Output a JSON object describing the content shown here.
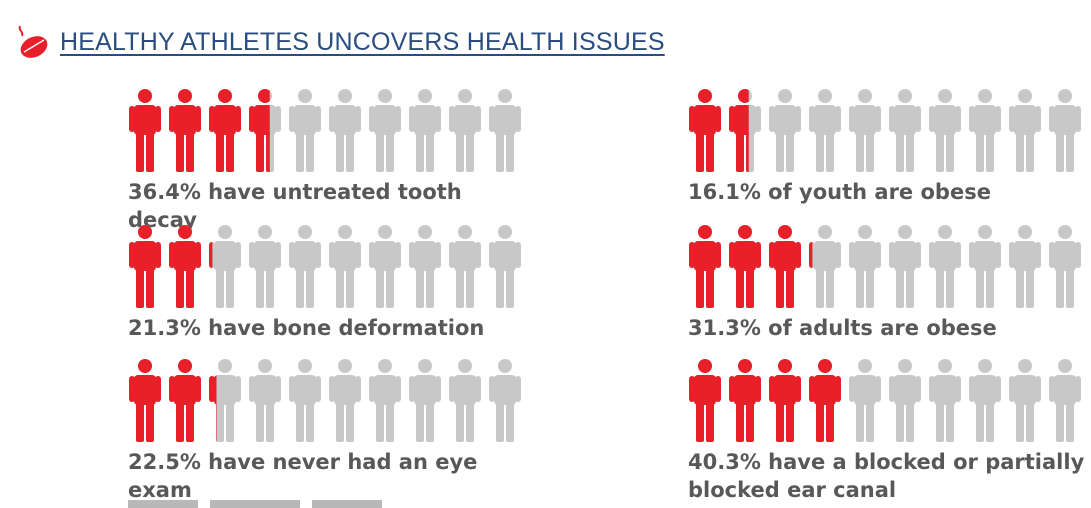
{
  "header": {
    "title": "HEALTHY ATHLETES UNCOVERS HEALTH ISSUES",
    "icon": "red-leaf-icon"
  },
  "colors": {
    "highlight": "#e8202a",
    "base": "#c8c8c8",
    "title": "#2a4d80",
    "text": "#585858"
  },
  "chart_data": {
    "type": "pictogram",
    "icons_per_row": 10,
    "items": [
      {
        "percent": 36.4,
        "caption": "36.4% have untreated tooth decay"
      },
      {
        "percent": 21.3,
        "caption": "21.3% have bone deformation"
      },
      {
        "percent": 22.5,
        "caption": "22.5% have never had an eye exam"
      },
      {
        "percent": 16.1,
        "caption": "16.1% of youth are obese"
      },
      {
        "percent": 31.3,
        "caption": "31.3% of adults are obese"
      },
      {
        "percent": 40.3,
        "caption": "40.3% have a blocked or partially\nblocked ear canal"
      }
    ]
  }
}
